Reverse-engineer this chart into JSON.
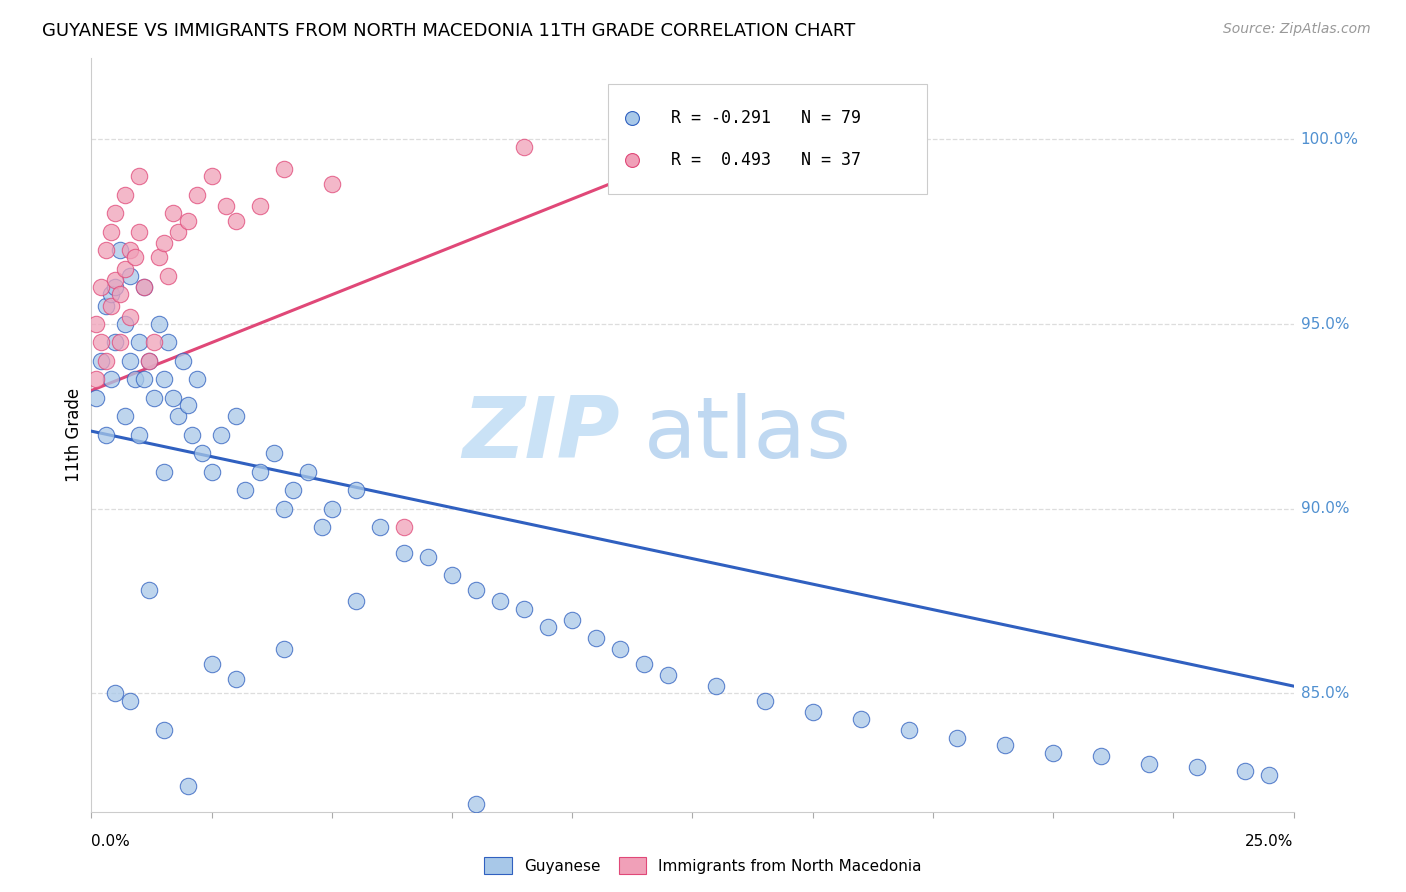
{
  "title": "GUYANESE VS IMMIGRANTS FROM NORTH MACEDONIA 11TH GRADE CORRELATION CHART",
  "source": "Source: ZipAtlas.com",
  "ylabel": "11th Grade",
  "color_blue": "#a8c8e8",
  "color_pink": "#f0a0b8",
  "color_trendline_blue": "#3060c0",
  "color_trendline_pink": "#e04878",
  "color_right_labels": "#5090d0",
  "xmin": 0.0,
  "xmax": 0.25,
  "ymin": 0.818,
  "ymax": 1.022,
  "ytick_vals": [
    0.85,
    0.9,
    0.95,
    1.0
  ],
  "ytick_labels": [
    "85.0%",
    "90.0%",
    "95.0%",
    "100.0%"
  ],
  "blue_trend_x0": 0.0,
  "blue_trend_y0": 0.921,
  "blue_trend_x1": 0.25,
  "blue_trend_y1": 0.852,
  "pink_trend_x0": 0.0,
  "pink_trend_y0": 0.932,
  "pink_trend_x1": 0.135,
  "pink_trend_y1": 1.002,
  "blue_x": [
    0.001,
    0.002,
    0.003,
    0.003,
    0.004,
    0.004,
    0.005,
    0.005,
    0.006,
    0.007,
    0.007,
    0.008,
    0.008,
    0.009,
    0.01,
    0.01,
    0.011,
    0.011,
    0.012,
    0.013,
    0.014,
    0.015,
    0.015,
    0.016,
    0.017,
    0.018,
    0.019,
    0.02,
    0.021,
    0.022,
    0.023,
    0.025,
    0.027,
    0.03,
    0.032,
    0.035,
    0.038,
    0.04,
    0.042,
    0.045,
    0.048,
    0.05,
    0.055,
    0.06,
    0.065,
    0.07,
    0.075,
    0.08,
    0.085,
    0.09,
    0.095,
    0.1,
    0.105,
    0.11,
    0.115,
    0.12,
    0.13,
    0.14,
    0.15,
    0.16,
    0.17,
    0.18,
    0.19,
    0.2,
    0.21,
    0.22,
    0.23,
    0.24,
    0.245,
    0.005,
    0.008,
    0.012,
    0.015,
    0.02,
    0.025,
    0.03,
    0.04,
    0.055,
    0.08
  ],
  "blue_y": [
    0.93,
    0.94,
    0.955,
    0.92,
    0.958,
    0.935,
    0.945,
    0.96,
    0.97,
    0.95,
    0.925,
    0.94,
    0.963,
    0.935,
    0.945,
    0.92,
    0.935,
    0.96,
    0.94,
    0.93,
    0.95,
    0.935,
    0.91,
    0.945,
    0.93,
    0.925,
    0.94,
    0.928,
    0.92,
    0.935,
    0.915,
    0.91,
    0.92,
    0.925,
    0.905,
    0.91,
    0.915,
    0.9,
    0.905,
    0.91,
    0.895,
    0.9,
    0.905,
    0.895,
    0.888,
    0.887,
    0.882,
    0.878,
    0.875,
    0.873,
    0.868,
    0.87,
    0.865,
    0.862,
    0.858,
    0.855,
    0.852,
    0.848,
    0.845,
    0.843,
    0.84,
    0.838,
    0.836,
    0.834,
    0.833,
    0.831,
    0.83,
    0.829,
    0.828,
    0.85,
    0.848,
    0.878,
    0.84,
    0.825,
    0.858,
    0.854,
    0.862,
    0.875,
    0.82
  ],
  "pink_x": [
    0.001,
    0.001,
    0.002,
    0.002,
    0.003,
    0.003,
    0.004,
    0.004,
    0.005,
    0.005,
    0.006,
    0.006,
    0.007,
    0.007,
    0.008,
    0.008,
    0.009,
    0.01,
    0.01,
    0.011,
    0.012,
    0.013,
    0.014,
    0.015,
    0.016,
    0.017,
    0.018,
    0.02,
    0.022,
    0.025,
    0.028,
    0.03,
    0.035,
    0.04,
    0.05,
    0.065,
    0.09
  ],
  "pink_y": [
    0.95,
    0.935,
    0.945,
    0.96,
    0.94,
    0.97,
    0.955,
    0.975,
    0.962,
    0.98,
    0.958,
    0.945,
    0.965,
    0.985,
    0.97,
    0.952,
    0.968,
    0.975,
    0.99,
    0.96,
    0.94,
    0.945,
    0.968,
    0.972,
    0.963,
    0.98,
    0.975,
    0.978,
    0.985,
    0.99,
    0.982,
    0.978,
    0.982,
    0.992,
    0.988,
    0.895,
    0.998
  ],
  "n_blue": 79,
  "n_pink": 37,
  "legend_text_blue": "R = -0.291   N = 79",
  "legend_text_pink": "R =  0.493   N = 37",
  "watermark": "ZIPatlas",
  "bg_color": "#ffffff",
  "grid_color": "#dddddd"
}
